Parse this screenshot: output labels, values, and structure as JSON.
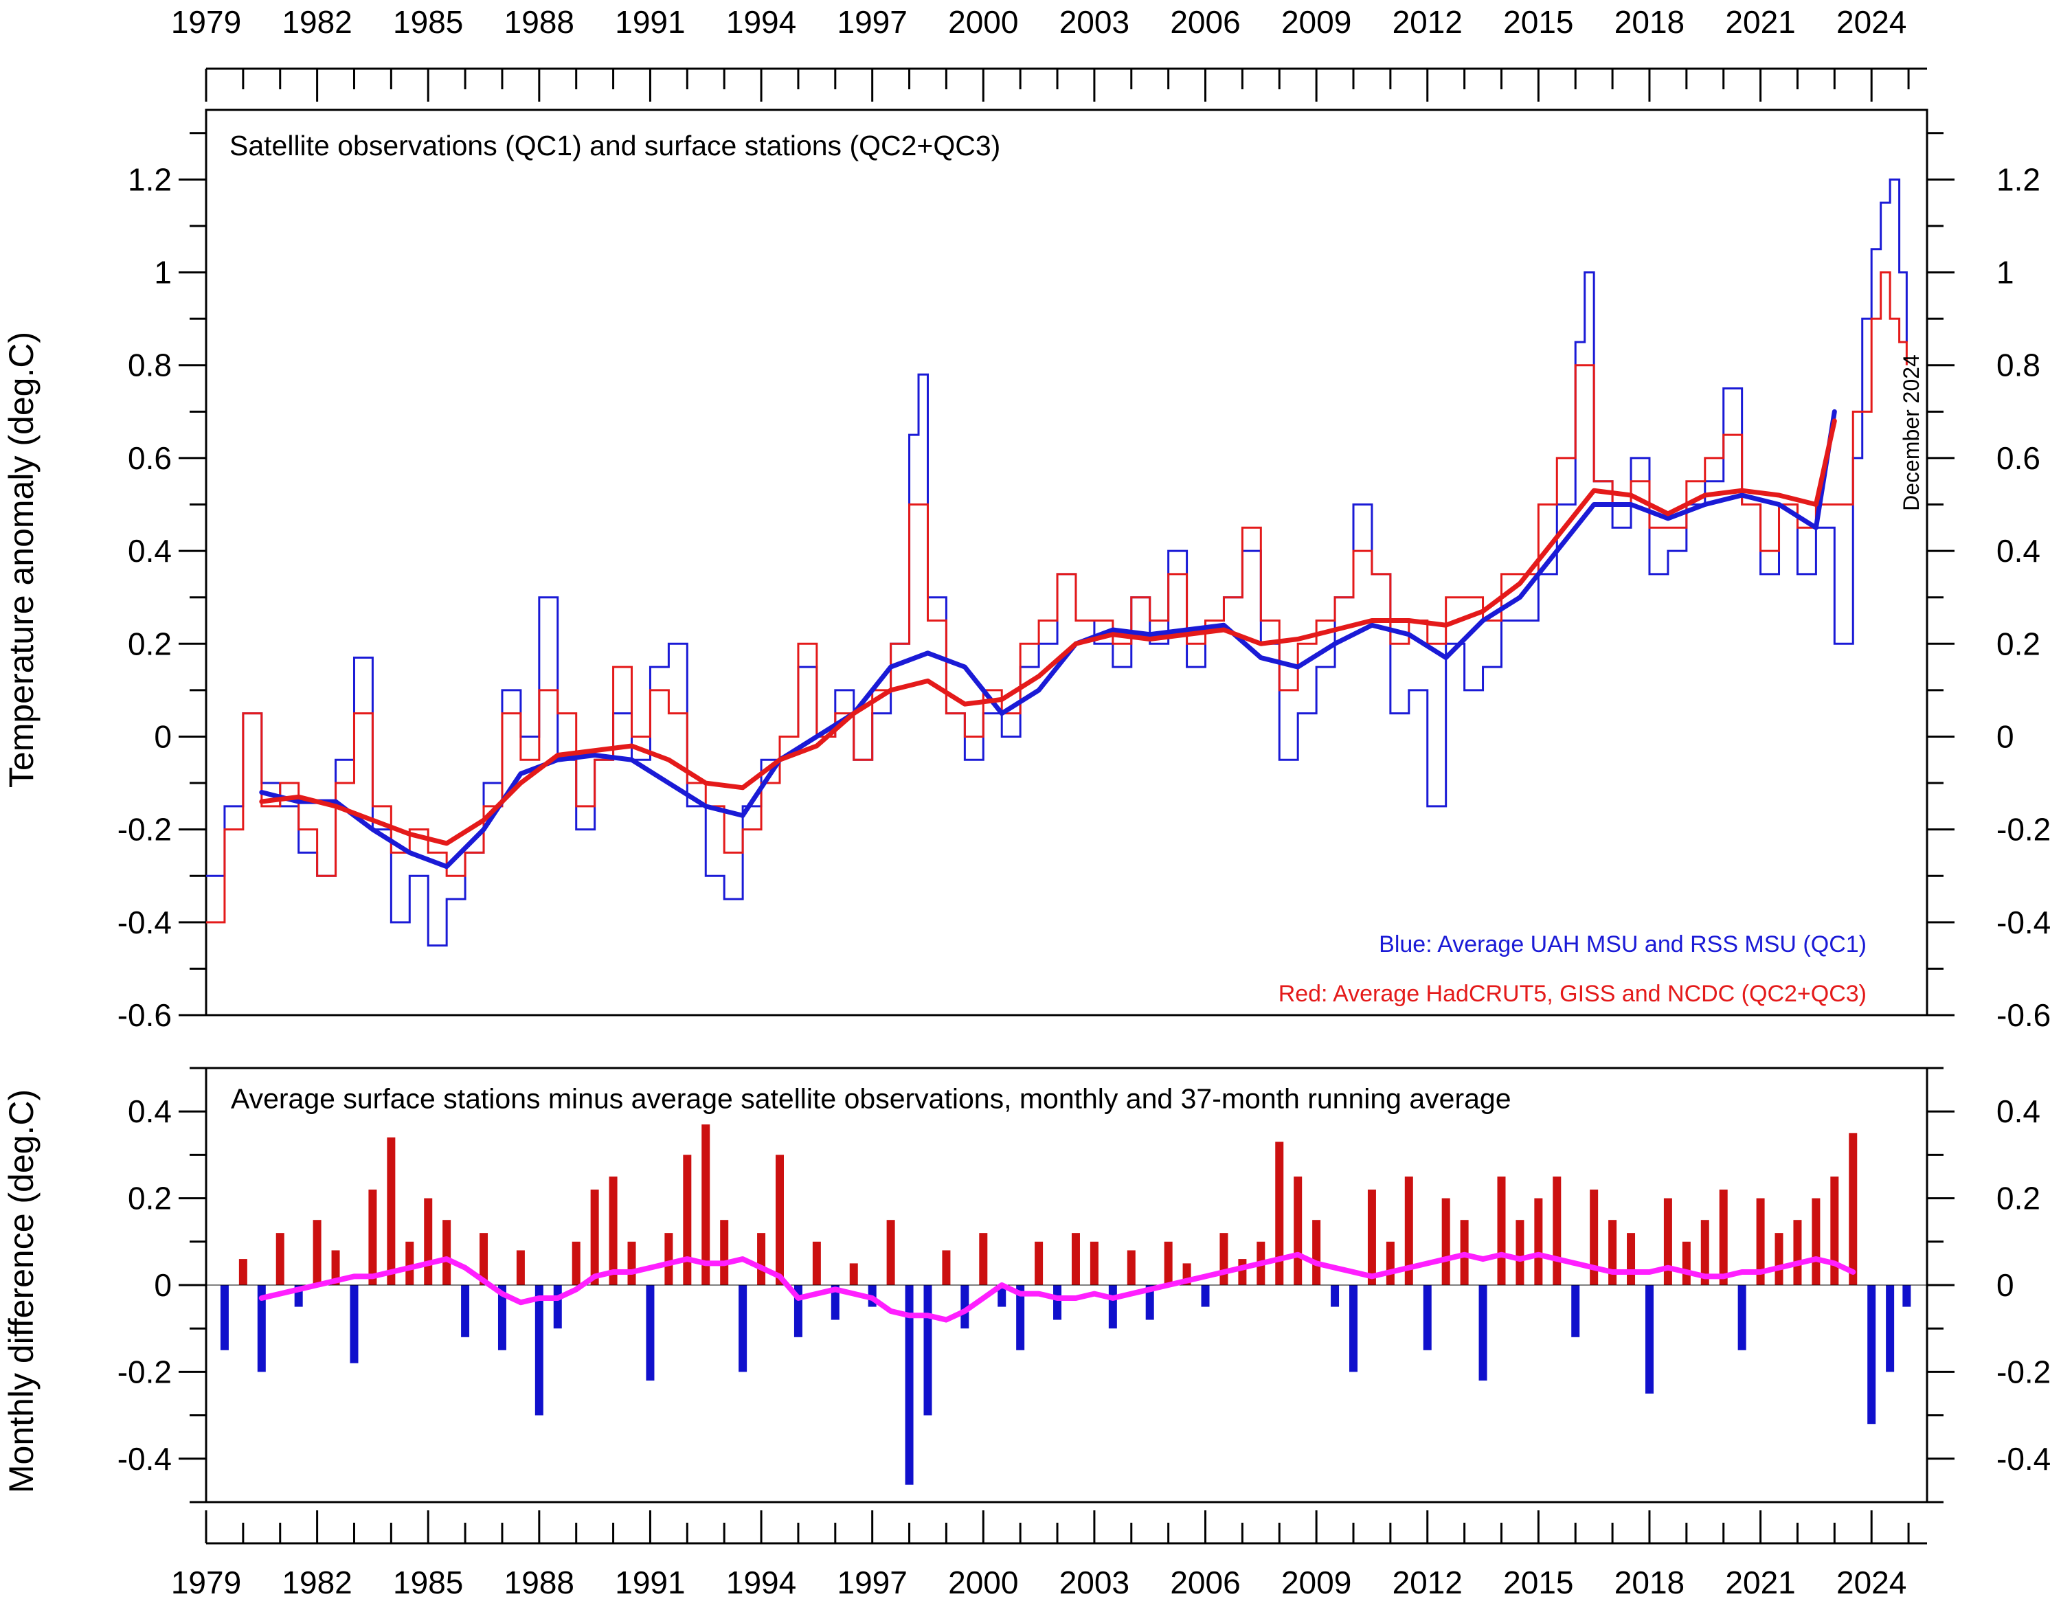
{
  "chart_data": [
    {
      "type": "line",
      "title": "Satellite observations (QC1) and surface stations (QC2+QC3)",
      "ylabel": "Temperature anomaly (deg.C)",
      "xlim": [
        1979,
        2025.5
      ],
      "ylim": [
        -0.6,
        1.35
      ],
      "x_ticks": [
        1979,
        1982,
        1985,
        1988,
        1991,
        1994,
        1997,
        2000,
        2003,
        2006,
        2009,
        2012,
        2015,
        2018,
        2021,
        2024
      ],
      "y_ticks": [
        -0.6,
        -0.4,
        -0.2,
        0,
        0.2,
        0.4,
        0.6,
        0.8,
        1,
        1.2
      ],
      "y_tick_labels": [
        "-0.6",
        "-0.4",
        "-0.2",
        "0",
        "0.2",
        "0.4",
        "0.6",
        "0.8",
        "1",
        "1.2"
      ],
      "annotation": "December 2024",
      "legend": [
        {
          "text": "Blue: Average UAH MSU and RSS MSU (QC1)",
          "color": "#1a1ad6"
        },
        {
          "text": "Red: Average HadCRUT5, GISS and NCDC (QC2+QC3)",
          "color": "#e41a1a"
        }
      ],
      "series": [
        {
          "name": "Satellite monthly (UAH+RSS)",
          "color": "#1a1ad6",
          "style": "step",
          "x": [
            1979.0,
            1979.5,
            1980.0,
            1980.5,
            1981.0,
            1981.5,
            1982.0,
            1982.5,
            1983.0,
            1983.5,
            1984.0,
            1984.5,
            1985.0,
            1985.5,
            1986.0,
            1986.5,
            1987.0,
            1987.5,
            1988.0,
            1988.5,
            1989.0,
            1989.5,
            1990.0,
            1990.5,
            1991.0,
            1991.5,
            1992.0,
            1992.5,
            1993.0,
            1993.5,
            1994.0,
            1994.5,
            1995.0,
            1995.5,
            1996.0,
            1996.5,
            1997.0,
            1997.5,
            1998.0,
            1998.25,
            1998.5,
            1999.0,
            1999.5,
            2000.0,
            2000.5,
            2001.0,
            2001.5,
            2002.0,
            2002.5,
            2003.0,
            2003.5,
            2004.0,
            2004.5,
            2005.0,
            2005.5,
            2006.0,
            2006.5,
            2007.0,
            2007.5,
            2008.0,
            2008.5,
            2009.0,
            2009.5,
            2010.0,
            2010.5,
            2011.0,
            2011.5,
            2012.0,
            2012.5,
            2013.0,
            2013.5,
            2014.0,
            2014.5,
            2015.0,
            2015.5,
            2016.0,
            2016.25,
            2016.5,
            2017.0,
            2017.5,
            2018.0,
            2018.5,
            2019.0,
            2019.5,
            2020.0,
            2020.5,
            2021.0,
            2021.5,
            2022.0,
            2022.5,
            2023.0,
            2023.5,
            2023.75,
            2024.0,
            2024.25,
            2024.5,
            2024.75,
            2024.95
          ],
          "y": [
            -0.3,
            -0.15,
            0.05,
            -0.1,
            -0.15,
            -0.25,
            -0.3,
            -0.05,
            0.17,
            -0.2,
            -0.4,
            -0.3,
            -0.45,
            -0.35,
            -0.25,
            -0.1,
            0.1,
            0.0,
            0.3,
            -0.05,
            -0.2,
            -0.05,
            0.05,
            -0.05,
            0.15,
            0.2,
            -0.15,
            -0.3,
            -0.35,
            -0.15,
            -0.05,
            0.0,
            0.15,
            0.0,
            0.1,
            -0.05,
            0.05,
            0.2,
            0.65,
            0.78,
            0.3,
            0.05,
            -0.05,
            0.05,
            0.0,
            0.15,
            0.2,
            0.35,
            0.25,
            0.2,
            0.15,
            0.3,
            0.2,
            0.4,
            0.15,
            0.25,
            0.3,
            0.4,
            0.2,
            -0.05,
            0.05,
            0.15,
            0.3,
            0.5,
            0.35,
            0.05,
            0.1,
            -0.15,
            0.2,
            0.1,
            0.15,
            0.25,
            0.25,
            0.35,
            0.5,
            0.85,
            1.0,
            0.55,
            0.45,
            0.6,
            0.35,
            0.4,
            0.5,
            0.55,
            0.75,
            0.5,
            0.35,
            0.5,
            0.35,
            0.45,
            0.2,
            0.6,
            0.9,
            1.05,
            1.15,
            1.2,
            1.0,
            0.85
          ]
        },
        {
          "name": "Surface monthly (HadCRUT5+GISS+NCDC)",
          "color": "#e41a1a",
          "style": "step",
          "x": [
            1979.0,
            1979.5,
            1980.0,
            1980.5,
            1981.0,
            1981.5,
            1982.0,
            1982.5,
            1983.0,
            1983.5,
            1984.0,
            1984.5,
            1985.0,
            1985.5,
            1986.0,
            1986.5,
            1987.0,
            1987.5,
            1988.0,
            1988.5,
            1989.0,
            1989.5,
            1990.0,
            1990.5,
            1991.0,
            1991.5,
            1992.0,
            1992.5,
            1993.0,
            1993.5,
            1994.0,
            1994.5,
            1995.0,
            1995.5,
            1996.0,
            1996.5,
            1997.0,
            1997.5,
            1998.0,
            1998.5,
            1999.0,
            1999.5,
            2000.0,
            2000.5,
            2001.0,
            2001.5,
            2002.0,
            2002.5,
            2003.0,
            2003.5,
            2004.0,
            2004.5,
            2005.0,
            2005.5,
            2006.0,
            2006.5,
            2007.0,
            2007.5,
            2008.0,
            2008.5,
            2009.0,
            2009.5,
            2010.0,
            2010.5,
            2011.0,
            2011.5,
            2012.0,
            2012.5,
            2013.0,
            2013.5,
            2014.0,
            2014.5,
            2015.0,
            2015.5,
            2016.0,
            2016.5,
            2017.0,
            2017.5,
            2018.0,
            2018.5,
            2019.0,
            2019.5,
            2020.0,
            2020.5,
            2021.0,
            2021.5,
            2022.0,
            2022.5,
            2023.0,
            2023.5,
            2024.0,
            2024.25,
            2024.5,
            2024.75,
            2024.95
          ],
          "y": [
            -0.4,
            -0.2,
            0.05,
            -0.15,
            -0.1,
            -0.2,
            -0.3,
            -0.1,
            0.05,
            -0.15,
            -0.25,
            -0.2,
            -0.25,
            -0.3,
            -0.25,
            -0.15,
            0.05,
            -0.05,
            0.1,
            0.05,
            -0.15,
            -0.05,
            0.15,
            0.0,
            0.1,
            0.05,
            -0.1,
            -0.15,
            -0.25,
            -0.2,
            -0.1,
            0.0,
            0.2,
            0.0,
            0.05,
            -0.05,
            0.1,
            0.2,
            0.5,
            0.25,
            0.05,
            0.0,
            0.1,
            0.05,
            0.2,
            0.25,
            0.35,
            0.25,
            0.25,
            0.2,
            0.3,
            0.25,
            0.35,
            0.2,
            0.25,
            0.3,
            0.45,
            0.25,
            0.1,
            0.2,
            0.25,
            0.3,
            0.4,
            0.35,
            0.2,
            0.25,
            0.2,
            0.3,
            0.3,
            0.25,
            0.35,
            0.35,
            0.5,
            0.6,
            0.8,
            0.55,
            0.5,
            0.55,
            0.45,
            0.45,
            0.55,
            0.6,
            0.65,
            0.5,
            0.4,
            0.5,
            0.45,
            0.5,
            0.5,
            0.7,
            0.9,
            1.0,
            0.9,
            0.85,
            0.8
          ]
        },
        {
          "name": "Satellite 37-month running average",
          "color": "#1a1ad6",
          "style": "line",
          "x": [
            1980.5,
            1981.5,
            1982.5,
            1983.5,
            1984.5,
            1985.5,
            1986.5,
            1987.5,
            1988.5,
            1989.5,
            1990.5,
            1991.5,
            1992.5,
            1993.5,
            1994.5,
            1995.5,
            1996.5,
            1997.5,
            1998.5,
            1999.5,
            2000.5,
            2001.5,
            2002.5,
            2003.5,
            2004.5,
            2005.5,
            2006.5,
            2007.5,
            2008.5,
            2009.5,
            2010.5,
            2011.5,
            2012.5,
            2013.5,
            2014.5,
            2015.5,
            2016.5,
            2017.5,
            2018.5,
            2019.5,
            2020.5,
            2021.5,
            2022.5,
            2023.0
          ],
          "y": [
            -0.12,
            -0.14,
            -0.14,
            -0.2,
            -0.25,
            -0.28,
            -0.2,
            -0.08,
            -0.05,
            -0.04,
            -0.05,
            -0.1,
            -0.15,
            -0.17,
            -0.05,
            0.0,
            0.05,
            0.15,
            0.18,
            0.15,
            0.05,
            0.1,
            0.2,
            0.23,
            0.22,
            0.23,
            0.24,
            0.17,
            0.15,
            0.2,
            0.24,
            0.22,
            0.17,
            0.25,
            0.3,
            0.4,
            0.5,
            0.5,
            0.47,
            0.5,
            0.52,
            0.5,
            0.45,
            0.7
          ]
        },
        {
          "name": "Surface 37-month running average",
          "color": "#e41a1a",
          "style": "line",
          "x": [
            1980.5,
            1981.5,
            1982.5,
            1983.5,
            1984.5,
            1985.5,
            1986.5,
            1987.5,
            1988.5,
            1989.5,
            1990.5,
            1991.5,
            1992.5,
            1993.5,
            1994.5,
            1995.5,
            1996.5,
            1997.5,
            1998.5,
            1999.5,
            2000.5,
            2001.5,
            2002.5,
            2003.5,
            2004.5,
            2005.5,
            2006.5,
            2007.5,
            2008.5,
            2009.5,
            2010.5,
            2011.5,
            2012.5,
            2013.5,
            2014.5,
            2015.5,
            2016.5,
            2017.5,
            2018.5,
            2019.5,
            2020.5,
            2021.5,
            2022.5,
            2023.0
          ],
          "y": [
            -0.14,
            -0.13,
            -0.15,
            -0.18,
            -0.21,
            -0.23,
            -0.18,
            -0.1,
            -0.04,
            -0.03,
            -0.02,
            -0.05,
            -0.1,
            -0.11,
            -0.05,
            -0.02,
            0.05,
            0.1,
            0.12,
            0.07,
            0.08,
            0.13,
            0.2,
            0.22,
            0.21,
            0.22,
            0.23,
            0.2,
            0.21,
            0.23,
            0.25,
            0.25,
            0.24,
            0.27,
            0.33,
            0.43,
            0.53,
            0.52,
            0.48,
            0.52,
            0.53,
            0.52,
            0.5,
            0.68
          ]
        }
      ]
    },
    {
      "type": "bar",
      "title": "Average surface stations minus average satellite observations, monthly and 37-month running average",
      "ylabel": "Monthly difference (deg.C)",
      "xlim": [
        1979,
        2025.5
      ],
      "ylim": [
        -0.5,
        0.5
      ],
      "x_ticks": [
        1979,
        1982,
        1985,
        1988,
        1991,
        1994,
        1997,
        2000,
        2003,
        2006,
        2009,
        2012,
        2015,
        2018,
        2021,
        2024
      ],
      "y_ticks": [
        -0.4,
        -0.2,
        0,
        0.2,
        0.4
      ],
      "y_tick_labels": [
        "-0.4",
        "-0.2",
        "0",
        "0.2",
        "0.4"
      ],
      "positive_color": "#cc1010",
      "negative_color": "#1010cc",
      "monthly_difference": {
        "x": [
          1979.5,
          1980.0,
          1980.5,
          1981.0,
          1981.5,
          1982.0,
          1982.5,
          1983.0,
          1983.5,
          1984.0,
          1984.5,
          1985.0,
          1985.5,
          1986.0,
          1986.5,
          1987.0,
          1987.5,
          1988.0,
          1988.5,
          1989.0,
          1989.5,
          1990.0,
          1990.5,
          1991.0,
          1991.5,
          1992.0,
          1992.5,
          1993.0,
          1993.5,
          1994.0,
          1994.5,
          1995.0,
          1995.5,
          1996.0,
          1996.5,
          1997.0,
          1997.5,
          1998.0,
          1998.5,
          1999.0,
          1999.5,
          2000.0,
          2000.5,
          2001.0,
          2001.5,
          2002.0,
          2002.5,
          2003.0,
          2003.5,
          2004.0,
          2004.5,
          2005.0,
          2005.5,
          2006.0,
          2006.5,
          2007.0,
          2007.5,
          2008.0,
          2008.5,
          2009.0,
          2009.5,
          2010.0,
          2010.5,
          2011.0,
          2011.5,
          2012.0,
          2012.5,
          2013.0,
          2013.5,
          2014.0,
          2014.5,
          2015.0,
          2015.5,
          2016.0,
          2016.5,
          2017.0,
          2017.5,
          2018.0,
          2018.5,
          2019.0,
          2019.5,
          2020.0,
          2020.5,
          2021.0,
          2021.5,
          2022.0,
          2022.5,
          2023.0,
          2023.5,
          2024.0,
          2024.5,
          2024.95
        ],
        "y": [
          -0.15,
          0.06,
          -0.2,
          0.12,
          -0.05,
          0.15,
          0.08,
          -0.18,
          0.22,
          0.34,
          0.1,
          0.2,
          0.15,
          -0.12,
          0.12,
          -0.15,
          0.08,
          -0.3,
          -0.1,
          0.1,
          0.22,
          0.25,
          0.1,
          -0.22,
          0.12,
          0.3,
          0.37,
          0.15,
          -0.2,
          0.12,
          0.3,
          -0.12,
          0.1,
          -0.08,
          0.05,
          -0.05,
          0.15,
          -0.46,
          -0.3,
          0.08,
          -0.1,
          0.12,
          -0.05,
          -0.15,
          0.1,
          -0.08,
          0.12,
          0.1,
          -0.1,
          0.08,
          -0.08,
          0.1,
          0.05,
          -0.05,
          0.12,
          0.06,
          0.1,
          0.33,
          0.25,
          0.15,
          -0.05,
          -0.2,
          0.22,
          0.1,
          0.25,
          -0.15,
          0.2,
          0.15,
          -0.22,
          0.25,
          0.15,
          0.2,
          0.25,
          -0.12,
          0.22,
          0.15,
          0.12,
          -0.25,
          0.2,
          0.1,
          0.15,
          0.22,
          -0.15,
          0.2,
          0.12,
          0.15,
          0.2,
          0.25,
          0.35,
          -0.32,
          -0.2,
          -0.05
        ]
      },
      "running_average": {
        "name": "37-month running average",
        "color": "#ff1fff",
        "x": [
          1980.5,
          1981.0,
          1981.5,
          1982.0,
          1982.5,
          1983.0,
          1983.5,
          1984.0,
          1984.5,
          1985.0,
          1985.5,
          1986.0,
          1986.5,
          1987.0,
          1987.5,
          1988.0,
          1988.5,
          1989.0,
          1989.5,
          1990.0,
          1990.5,
          1991.0,
          1991.5,
          1992.0,
          1992.5,
          1993.0,
          1993.5,
          1994.0,
          1994.5,
          1995.0,
          1995.5,
          1996.0,
          1996.5,
          1997.0,
          1997.5,
          1998.0,
          1998.5,
          1999.0,
          1999.5,
          2000.0,
          2000.5,
          2001.0,
          2001.5,
          2002.0,
          2002.5,
          2003.0,
          2003.5,
          2004.0,
          2004.5,
          2005.0,
          2005.5,
          2006.0,
          2006.5,
          2007.0,
          2007.5,
          2008.0,
          2008.5,
          2009.0,
          2009.5,
          2010.0,
          2010.5,
          2011.0,
          2011.5,
          2012.0,
          2012.5,
          2013.0,
          2013.5,
          2014.0,
          2014.5,
          2015.0,
          2015.5,
          2016.0,
          2016.5,
          2017.0,
          2017.5,
          2018.0,
          2018.5,
          2019.0,
          2019.5,
          2020.0,
          2020.5,
          2021.0,
          2021.5,
          2022.0,
          2022.5,
          2023.0,
          2023.5
        ],
        "y": [
          -0.03,
          -0.02,
          -0.01,
          0.0,
          0.01,
          0.02,
          0.02,
          0.03,
          0.04,
          0.05,
          0.06,
          0.04,
          0.01,
          -0.02,
          -0.04,
          -0.03,
          -0.03,
          -0.01,
          0.02,
          0.03,
          0.03,
          0.04,
          0.05,
          0.06,
          0.05,
          0.05,
          0.06,
          0.04,
          0.02,
          -0.03,
          -0.02,
          -0.01,
          -0.02,
          -0.03,
          -0.06,
          -0.07,
          -0.07,
          -0.08,
          -0.06,
          -0.03,
          0.0,
          -0.02,
          -0.02,
          -0.03,
          -0.03,
          -0.02,
          -0.03,
          -0.02,
          -0.01,
          0.0,
          0.01,
          0.02,
          0.03,
          0.04,
          0.05,
          0.06,
          0.07,
          0.05,
          0.04,
          0.03,
          0.02,
          0.03,
          0.04,
          0.05,
          0.06,
          0.07,
          0.06,
          0.07,
          0.06,
          0.07,
          0.06,
          0.05,
          0.04,
          0.03,
          0.03,
          0.03,
          0.04,
          0.03,
          0.02,
          0.02,
          0.03,
          0.03,
          0.04,
          0.05,
          0.06,
          0.05,
          0.03
        ]
      }
    }
  ],
  "colors": {
    "satellite": "#1a1ad6",
    "surface": "#e41a1a",
    "difference_positive": "#cc1010",
    "difference_negative": "#1010cc",
    "running_average_difference": "#ff1fff"
  }
}
